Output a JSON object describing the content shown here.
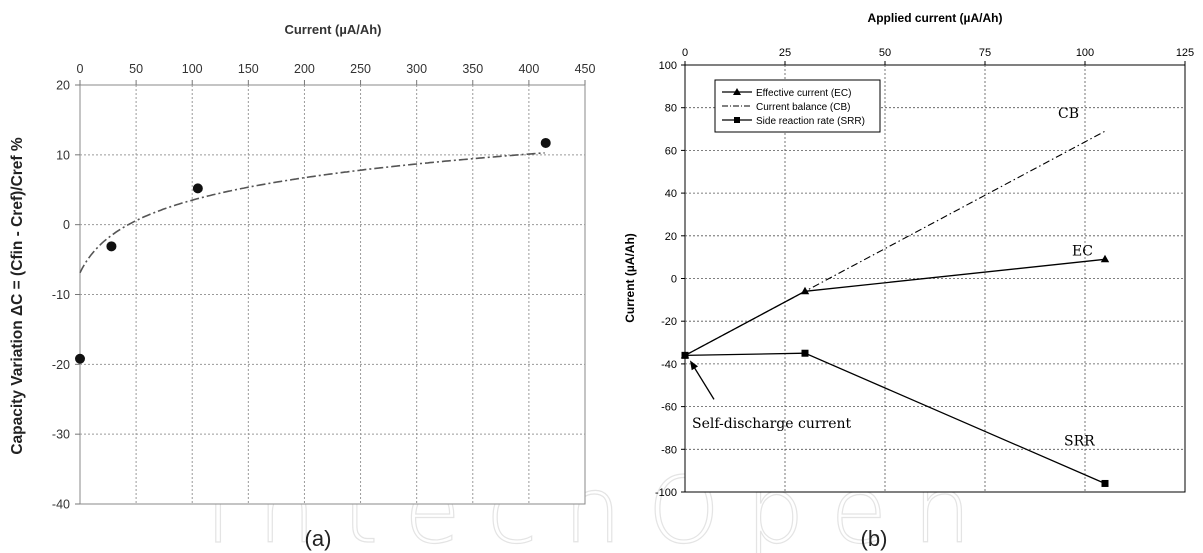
{
  "watermark": "IntechOpen",
  "chart_data": [
    {
      "type": "scatter",
      "panel_label": "(a)",
      "title": "",
      "xlabel": "Current (µA/Ah)",
      "ylabel": "Capacity Variation ΔC = (Cfin - Cref)/Cref %",
      "xlim": [
        0,
        450
      ],
      "ylim": [
        -40,
        20
      ],
      "x_ticks": [
        0,
        50,
        100,
        150,
        200,
        250,
        300,
        350,
        400,
        450
      ],
      "y_ticks": [
        20,
        10,
        0,
        -10,
        -20,
        -30,
        -40
      ],
      "x_axis_position": "top",
      "grid": true,
      "legend": "none",
      "series": [
        {
          "marker": "circle",
          "points": [
            {
              "x": 0,
              "y": -19.2
            },
            {
              "x": 28,
              "y": -3.1
            },
            {
              "x": 105,
              "y": 5.2
            },
            {
              "x": 415,
              "y": 11.7
            }
          ]
        }
      ],
      "trend_line": {
        "style": "dash-dot",
        "color": "#555555"
      }
    },
    {
      "type": "line",
      "panel_label": "(b)",
      "title": "",
      "xlabel": "Applied current (µA/Ah)",
      "ylabel": "Current (µA/Ah)",
      "xlim": [
        0,
        125
      ],
      "ylim": [
        -100,
        100
      ],
      "x_ticks": [
        0,
        25,
        50,
        75,
        100,
        125
      ],
      "y_ticks": [
        100,
        80,
        60,
        40,
        20,
        0,
        -20,
        -40,
        -60,
        -80,
        -100
      ],
      "x_axis_position": "top",
      "grid": true,
      "legend": "top-left",
      "series": [
        {
          "name": "Effective current (EC)",
          "label": "EC",
          "marker": "triangle",
          "style": "solid",
          "points": [
            {
              "x": 0,
              "y": -36
            },
            {
              "x": 30,
              "y": -6
            },
            {
              "x": 105,
              "y": 9
            }
          ]
        },
        {
          "name": "Current balance (CB)",
          "label": "CB",
          "marker": "none",
          "style": "dash-dot",
          "points": [
            {
              "x": 0,
              "y": -36
            },
            {
              "x": 105,
              "y": 69
            }
          ]
        },
        {
          "name": "Side reaction rate (SRR)",
          "label": "SRR",
          "marker": "square",
          "style": "solid",
          "points": [
            {
              "x": 0,
              "y": -36
            },
            {
              "x": 30,
              "y": -35
            },
            {
              "x": 105,
              "y": -96
            }
          ]
        }
      ],
      "annotations": [
        {
          "text": "Self-discharge current",
          "x": 0,
          "y": -36
        }
      ]
    }
  ]
}
